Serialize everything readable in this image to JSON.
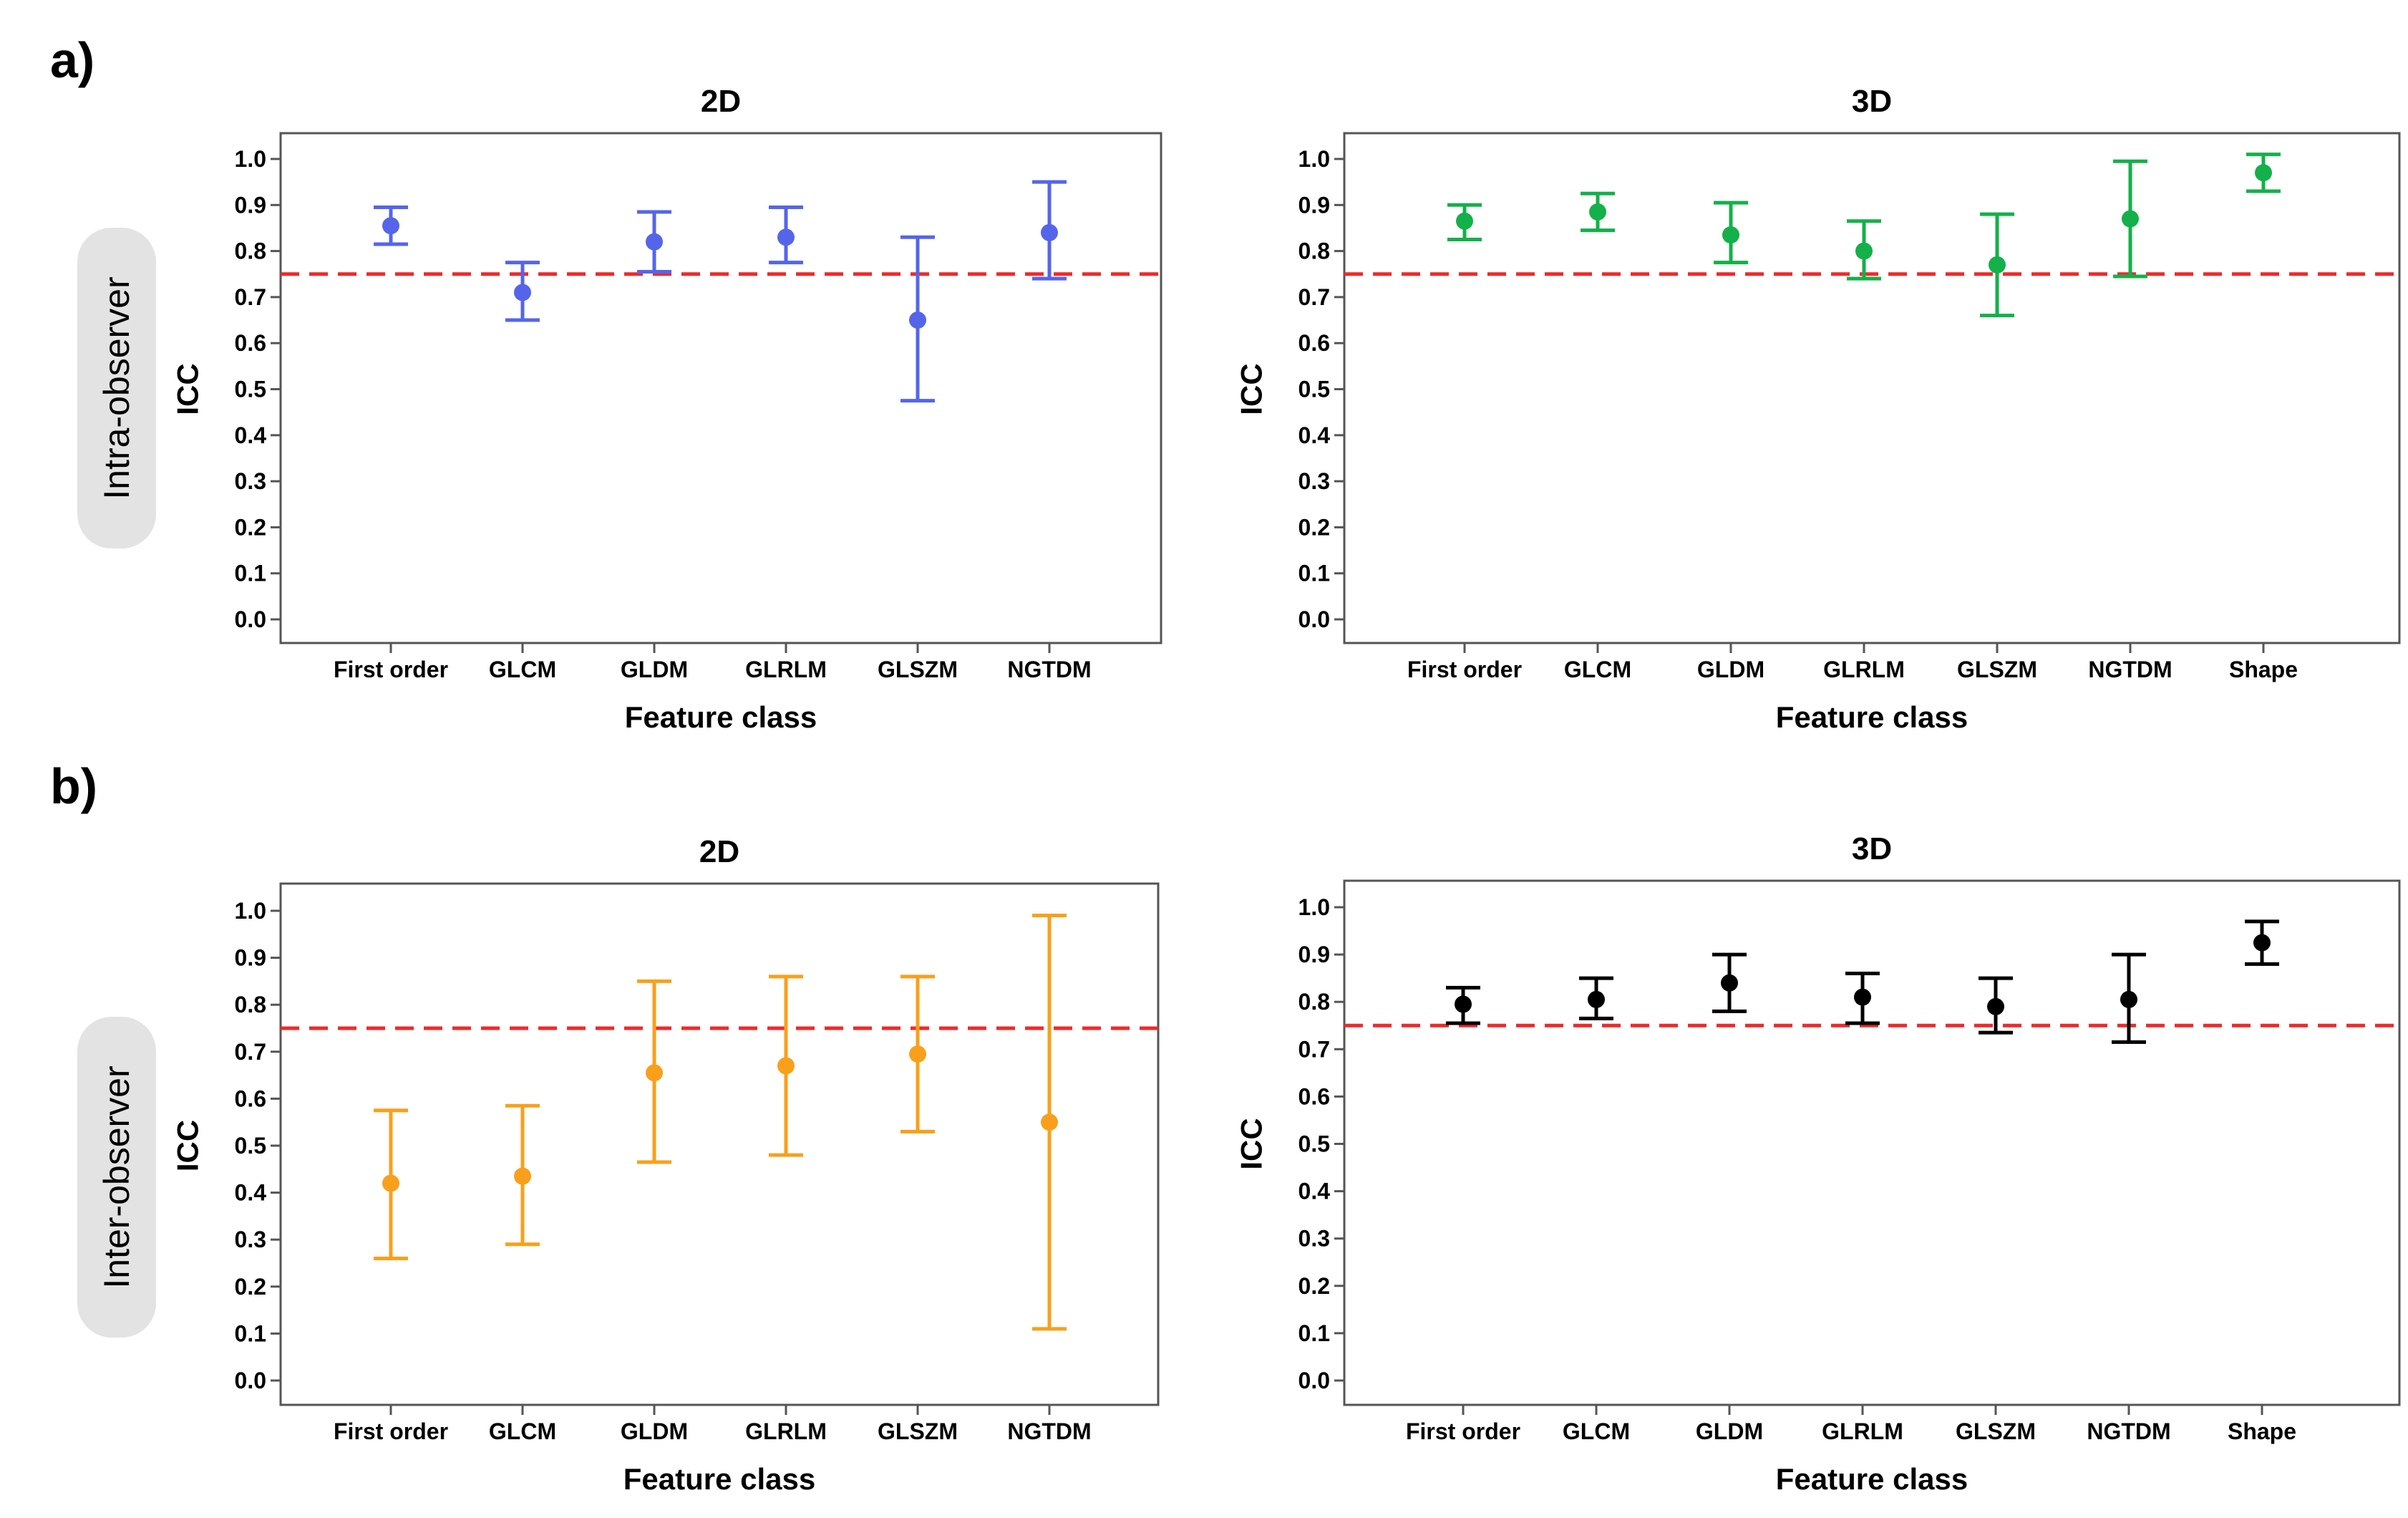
{
  "panels": [
    {
      "label": "a)",
      "row_label": "Intra-observer"
    },
    {
      "label": "b)",
      "row_label": "Inter-observer"
    }
  ],
  "chart_data": [
    {
      "type": "errorbar",
      "title": "2D",
      "xlabel": "Feature class",
      "ylabel": "ICC",
      "ylim": [
        0,
        1
      ],
      "yticks": [
        "0.0",
        "0.1",
        "0.2",
        "0.3",
        "0.4",
        "0.5",
        "0.6",
        "0.7",
        "0.8",
        "0.9",
        "1.0"
      ],
      "categories": [
        "First order",
        "GLCM",
        "GLDM",
        "GLRLM",
        "GLSZM",
        "NGTDM"
      ],
      "values": [
        0.855,
        0.71,
        0.82,
        0.83,
        0.65,
        0.84
      ],
      "lower": [
        0.815,
        0.65,
        0.755,
        0.775,
        0.475,
        0.74
      ],
      "upper": [
        0.895,
        0.775,
        0.885,
        0.895,
        0.83,
        0.95
      ],
      "threshold": 0.75,
      "color": "#5565ea",
      "threshold_color": "#ee2a2a"
    },
    {
      "type": "errorbar",
      "title": "3D",
      "xlabel": "Feature class",
      "ylabel": "ICC",
      "ylim": [
        0,
        1
      ],
      "yticks": [
        "0.0",
        "0.1",
        "0.2",
        "0.3",
        "0.4",
        "0.5",
        "0.6",
        "0.7",
        "0.8",
        "0.9",
        "1.0"
      ],
      "categories": [
        "First order",
        "GLCM",
        "GLDM",
        "GLRLM",
        "GLSZM",
        "NGTDM",
        "Shape"
      ],
      "values": [
        0.865,
        0.885,
        0.835,
        0.8,
        0.77,
        0.87,
        0.97
      ],
      "lower": [
        0.825,
        0.845,
        0.775,
        0.74,
        0.66,
        0.745,
        0.93
      ],
      "upper": [
        0.9,
        0.925,
        0.905,
        0.865,
        0.88,
        0.995,
        1.01
      ],
      "threshold": 0.75,
      "color": "#14b04a",
      "threshold_color": "#ee2a2a"
    },
    {
      "type": "errorbar",
      "title": "2D",
      "xlabel": "Feature class",
      "ylabel": "ICC",
      "ylim": [
        0,
        1
      ],
      "yticks": [
        "0.0",
        "0.1",
        "0.2",
        "0.3",
        "0.4",
        "0.5",
        "0.6",
        "0.7",
        "0.8",
        "0.9",
        "1.0"
      ],
      "categories": [
        "First order",
        "GLCM",
        "GLDM",
        "GLRLM",
        "GLSZM",
        "NGTDM"
      ],
      "values": [
        0.42,
        0.435,
        0.655,
        0.67,
        0.695,
        0.55
      ],
      "lower": [
        0.26,
        0.29,
        0.465,
        0.48,
        0.53,
        0.11
      ],
      "upper": [
        0.575,
        0.585,
        0.85,
        0.86,
        0.86,
        0.99
      ],
      "threshold": 0.75,
      "color": "#f8a01c",
      "threshold_color": "#ee2a2a"
    },
    {
      "type": "errorbar",
      "title": "3D",
      "xlabel": "Feature class",
      "ylabel": "ICC",
      "ylim": [
        0,
        1
      ],
      "yticks": [
        "0.0",
        "0.1",
        "0.2",
        "0.3",
        "0.4",
        "0.5",
        "0.6",
        "0.7",
        "0.8",
        "0.9",
        "1.0"
      ],
      "categories": [
        "First order",
        "GLCM",
        "GLDM",
        "GLRLM",
        "GLSZM",
        "NGTDM",
        "Shape"
      ],
      "values": [
        0.795,
        0.805,
        0.84,
        0.81,
        0.79,
        0.805,
        0.925
      ],
      "lower": [
        0.755,
        0.765,
        0.78,
        0.755,
        0.735,
        0.715,
        0.88
      ],
      "upper": [
        0.83,
        0.85,
        0.9,
        0.86,
        0.85,
        0.9,
        0.97
      ],
      "threshold": 0.75,
      "color": "#000000",
      "threshold_color": "#ee2a2a"
    }
  ]
}
